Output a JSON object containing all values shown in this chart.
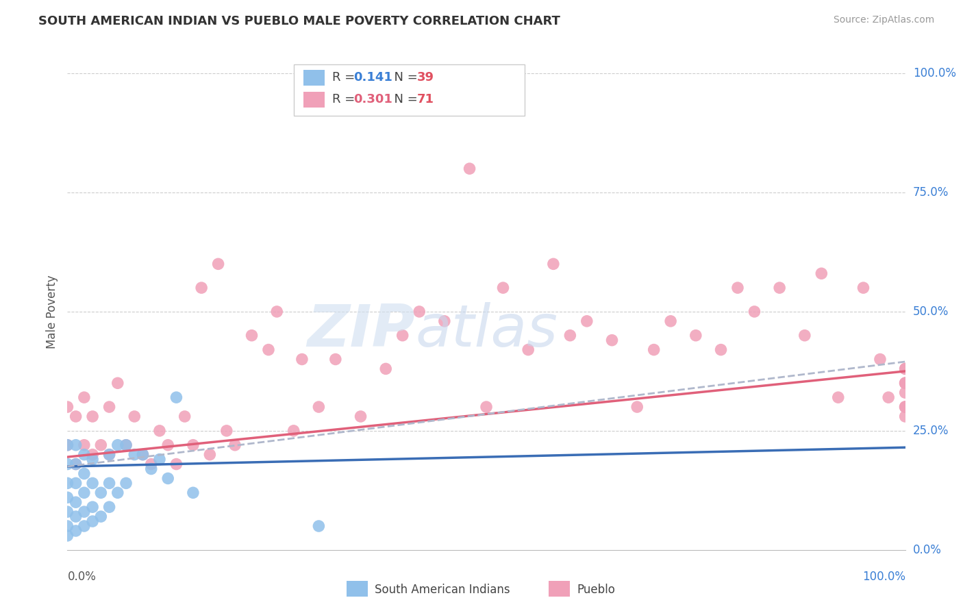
{
  "title": "SOUTH AMERICAN INDIAN VS PUEBLO MALE POVERTY CORRELATION CHART",
  "source_text": "Source: ZipAtlas.com",
  "ylabel": "Male Poverty",
  "ytick_labels": [
    "0.0%",
    "25.0%",
    "50.0%",
    "75.0%",
    "100.0%"
  ],
  "ytick_values": [
    0.0,
    0.25,
    0.5,
    0.75,
    1.0
  ],
  "xlim": [
    0.0,
    1.0
  ],
  "ylim": [
    0.0,
    1.0
  ],
  "blue_scatter_color": "#90c0ea",
  "pink_scatter_color": "#f0a0b8",
  "blue_line_color": "#3a6db5",
  "pink_line_color": "#e0607a",
  "dashed_line_color": "#b0b8cc",
  "watermark_zip_color": "#d0dff0",
  "watermark_atlas_color": "#c8d8ee",
  "legend_box_color": "#dddddd",
  "r_value_color": "#3a7fd5",
  "n_value_color": "#e05060",
  "south_american_x": [
    0.0,
    0.0,
    0.0,
    0.0,
    0.0,
    0.0,
    0.0,
    0.01,
    0.01,
    0.01,
    0.01,
    0.01,
    0.01,
    0.02,
    0.02,
    0.02,
    0.02,
    0.02,
    0.03,
    0.03,
    0.03,
    0.03,
    0.04,
    0.04,
    0.05,
    0.05,
    0.05,
    0.06,
    0.06,
    0.07,
    0.07,
    0.08,
    0.09,
    0.1,
    0.11,
    0.12,
    0.13,
    0.15,
    0.3
  ],
  "south_american_y": [
    0.03,
    0.05,
    0.08,
    0.11,
    0.14,
    0.18,
    0.22,
    0.04,
    0.07,
    0.1,
    0.14,
    0.18,
    0.22,
    0.05,
    0.08,
    0.12,
    0.16,
    0.2,
    0.06,
    0.09,
    0.14,
    0.19,
    0.07,
    0.12,
    0.09,
    0.14,
    0.2,
    0.12,
    0.22,
    0.14,
    0.22,
    0.2,
    0.2,
    0.17,
    0.19,
    0.15,
    0.32,
    0.12,
    0.05
  ],
  "pueblo_x": [
    0.0,
    0.0,
    0.01,
    0.01,
    0.02,
    0.02,
    0.03,
    0.03,
    0.04,
    0.05,
    0.05,
    0.06,
    0.07,
    0.08,
    0.09,
    0.1,
    0.11,
    0.12,
    0.13,
    0.14,
    0.15,
    0.16,
    0.17,
    0.18,
    0.19,
    0.2,
    0.22,
    0.24,
    0.25,
    0.27,
    0.28,
    0.3,
    0.32,
    0.35,
    0.38,
    0.4,
    0.42,
    0.45,
    0.48,
    0.5,
    0.52,
    0.55,
    0.58,
    0.6,
    0.62,
    0.65,
    0.68,
    0.7,
    0.72,
    0.75,
    0.78,
    0.8,
    0.82,
    0.85,
    0.88,
    0.9,
    0.92,
    0.95,
    0.97,
    0.98,
    1.0,
    1.0,
    1.0,
    1.0,
    1.0,
    1.0,
    1.0,
    1.0,
    1.0,
    1.0
  ],
  "pueblo_y": [
    0.22,
    0.3,
    0.18,
    0.28,
    0.22,
    0.32,
    0.2,
    0.28,
    0.22,
    0.2,
    0.3,
    0.35,
    0.22,
    0.28,
    0.2,
    0.18,
    0.25,
    0.22,
    0.18,
    0.28,
    0.22,
    0.55,
    0.2,
    0.6,
    0.25,
    0.22,
    0.45,
    0.42,
    0.5,
    0.25,
    0.4,
    0.3,
    0.4,
    0.28,
    0.38,
    0.45,
    0.5,
    0.48,
    0.8,
    0.3,
    0.55,
    0.42,
    0.6,
    0.45,
    0.48,
    0.44,
    0.3,
    0.42,
    0.48,
    0.45,
    0.42,
    0.55,
    0.5,
    0.55,
    0.45,
    0.58,
    0.32,
    0.55,
    0.4,
    0.32,
    0.35,
    0.38,
    0.3,
    0.35,
    0.28,
    0.35,
    0.3,
    0.38,
    0.33,
    0.3
  ],
  "blue_line_x0": 0.0,
  "blue_line_x1": 1.0,
  "blue_line_y0": 0.175,
  "blue_line_y1": 0.215,
  "pink_line_x0": 0.0,
  "pink_line_x1": 1.0,
  "pink_line_y0": 0.195,
  "pink_line_y1": 0.375,
  "dash_line_x0": 0.0,
  "dash_line_x1": 1.0,
  "dash_line_y0": 0.175,
  "dash_line_y1": 0.395
}
